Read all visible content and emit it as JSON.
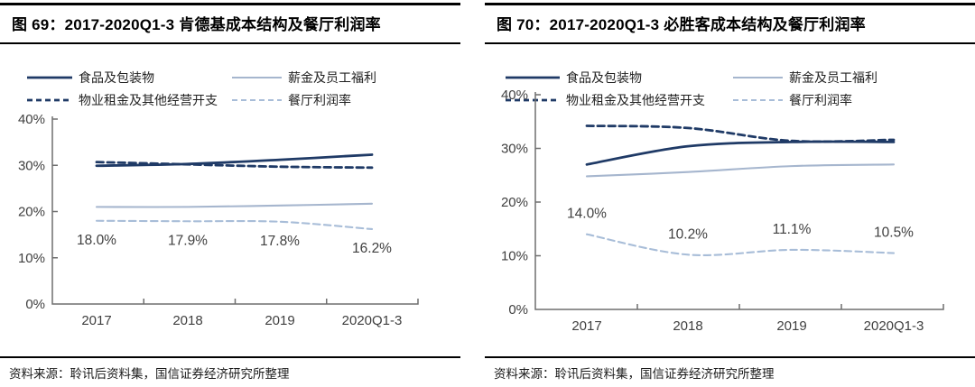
{
  "panels": [
    {
      "title": "图 69：2017-2020Q1-3 肯德基成本结构及餐厅利润率",
      "source": "资料来源：聆讯后资料集，国信证券经济研究所整理",
      "chart_data": {
        "type": "line",
        "categories": [
          "2017",
          "2018",
          "2019",
          "2020Q1-3"
        ],
        "ylim": [
          0,
          40
        ],
        "yticks": [
          40,
          30,
          20,
          10,
          0
        ],
        "ytick_labels": [
          "40%",
          "30%",
          "20%",
          "10%",
          "0%"
        ],
        "grid": false,
        "legend_position": "top",
        "series": [
          {
            "name": "食品及包装物",
            "style": "solid",
            "color": "#1f3a66",
            "values": [
              29.9,
              30.3,
              31.2,
              32.3
            ]
          },
          {
            "name": "薪金及员工福利",
            "style": "solid",
            "color": "#a6b6ce",
            "values": [
              21.0,
              21.0,
              21.3,
              21.7
            ]
          },
          {
            "name": "物业租金及其他经营开支",
            "style": "dashed",
            "color": "#1f3a66",
            "values": [
              30.7,
              30.2,
              29.7,
              29.5
            ]
          },
          {
            "name": "餐厅利润率",
            "style": "dashed",
            "color": "#a8bdd8",
            "values": [
              18.0,
              17.9,
              17.8,
              16.2
            ],
            "data_labels": [
              "18.0%",
              "17.9%",
              "17.8%",
              "16.2%"
            ],
            "label_side": "below"
          }
        ]
      }
    },
    {
      "title": "图 70：2017-2020Q1-3 必胜客成本结构及餐厅利润率",
      "source": "资料来源：聆讯后资料集，国信证券经济研究所整理",
      "chart_data": {
        "type": "line",
        "categories": [
          "2017",
          "2018",
          "2019",
          "2020Q1-3"
        ],
        "ylim": [
          0,
          40
        ],
        "yticks": [
          40,
          30,
          20,
          10,
          0
        ],
        "ytick_labels": [
          "40%",
          "30%",
          "20%",
          "10%",
          "0%"
        ],
        "grid": false,
        "legend_position": "top",
        "series": [
          {
            "name": "食品及包装物",
            "style": "solid",
            "color": "#1f3a66",
            "values": [
              27.0,
              30.4,
              31.2,
              31.2
            ]
          },
          {
            "name": "薪金及员工福利",
            "style": "solid",
            "color": "#a6b6ce",
            "values": [
              24.8,
              25.6,
              26.7,
              27.0
            ]
          },
          {
            "name": "物业租金及其他经营开支",
            "style": "dashed",
            "color": "#1f3a66",
            "values": [
              34.2,
              33.8,
              31.4,
              31.6
            ]
          },
          {
            "name": "餐厅利润率",
            "style": "dashed",
            "color": "#a8bdd8",
            "values": [
              14.0,
              10.2,
              11.1,
              10.5
            ],
            "data_labels": [
              "14.0%",
              "10.2%",
              "11.1%",
              "10.5%"
            ],
            "label_side": "above"
          }
        ]
      }
    }
  ],
  "colors": {
    "navy": "#1f3a66",
    "light_blue": "#a6b6ce",
    "light_blue_dashed": "#a8bdd8",
    "axis": "#6e6e6e",
    "label_text": "#3f3f3f"
  }
}
